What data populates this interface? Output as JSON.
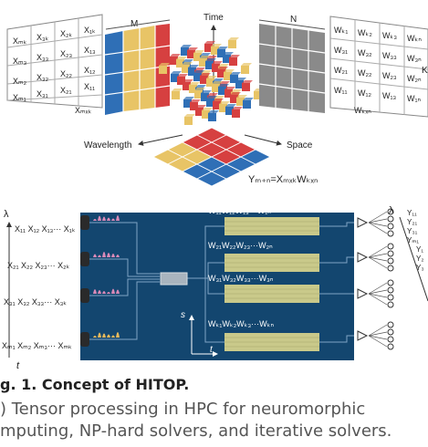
{
  "top": {
    "time_label": "Time",
    "wavelength_label": "Wavelength",
    "space_label": "Space",
    "m_label": "M",
    "n_label": "N",
    "k_label": "K",
    "equation": "Yₘ₊ₙ=XₘₓₖWₖₓₙ",
    "x_matrix": [
      [
        "Xₘₖ",
        "X₃ₖ",
        "X₂ₖ",
        "X₁ₖ"
      ],
      [
        "Xₘ₃",
        "X₃₃",
        "X₂₃",
        "X₁₃"
      ],
      [
        "Xₘ₂",
        "X₃₂",
        "X₂₂",
        "X₁₂"
      ],
      [
        "Xₘ₁",
        "X₃₁",
        "X₂₁",
        "X₁₁"
      ]
    ],
    "x_last": "Xₘₓₖ",
    "w_matrix": [
      [
        "Wₖ₁",
        "Wₖ₂",
        "Wₖ₃",
        "Wₖₙ"
      ],
      [
        "W₃₁",
        "W₃₂",
        "W₃₃",
        "W₃ₙ"
      ],
      [
        "W₂₁",
        "W₂₂",
        "W₂₃",
        "W₂ₙ"
      ],
      [
        "W₁₁",
        "W₁₂",
        "W₁₃",
        "W₁ₙ"
      ]
    ],
    "w_last": "Wₖₓₙ"
  },
  "bottom": {
    "lambda_label": "λ",
    "t_label": "t",
    "s_label": "s",
    "inputs": [
      "X₁₁ X₁₂ X₁₃··· X₁ₖ",
      "X₂₁ X₂₂ X₂₃··· X₂ₖ",
      "X₃₁ X₃₂ X₃₃··· X₃ₖ",
      "Xₘ₁ Xₘ₂ Xₘ₃··· Xₘₖ"
    ],
    "weights": [
      "W₁₁W₁₂W₁₃···W₁ₙ",
      "W₂₁W₂₂W₂₃···W₂ₙ",
      "W₃₁W₃₂W₃₃···W₃ₙ",
      "Wₖ₁Wₖ₂Wₖ₃···Wₖₙ"
    ],
    "outputs_1": [
      "Y₁₁",
      "Y₂₁",
      "Y₃₁",
      "Yₘ₁"
    ],
    "outputs_2": [
      "Y₁",
      "Y₂",
      "Y₃"
    ]
  },
  "caption": {
    "title": "g. 1. Concept of HITOP.",
    "line1": ") Tensor processing in HPC for neuromorphic",
    "line2": "mputing, NP-hard solvers, and iterative solvers."
  },
  "colors": {
    "blue": "#2f6fb6",
    "yellow": "#e8c466",
    "red": "#d64040",
    "gray": "#8a8a8a",
    "chip": "#13466f",
    "pulse": "#d98ab8"
  }
}
